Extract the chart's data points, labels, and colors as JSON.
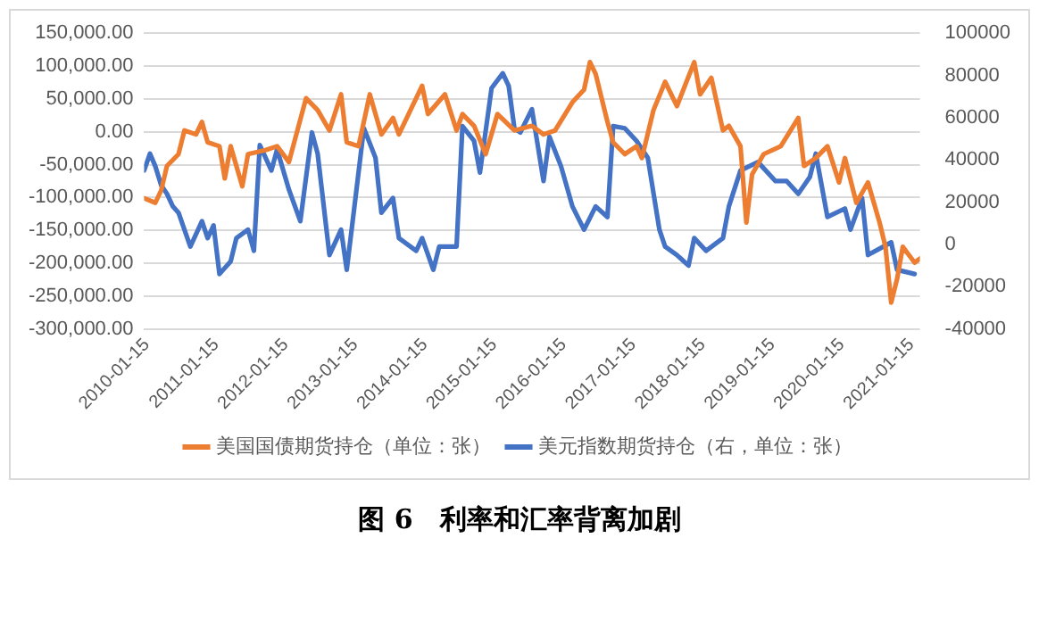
{
  "chart_data": {
    "type": "line",
    "title": "图 6　利率和汇率背离加剧",
    "x": [
      "2010-01",
      "2010-03",
      "2010-04",
      "2010-05",
      "2010-07",
      "2010-08",
      "2010-10",
      "2010-11",
      "2010-12",
      "2011-02",
      "2011-03",
      "2011-04",
      "2011-06",
      "2011-07",
      "2011-10",
      "2011-12",
      "2012-02",
      "2012-05",
      "2012-07",
      "2012-09",
      "2012-11",
      "2012-12",
      "2013-02",
      "2013-04",
      "2013-06",
      "2013-08",
      "2013-09",
      "2014-01",
      "2014-02",
      "2014-05",
      "2014-07",
      "2014-08",
      "2014-10",
      "2014-12",
      "2015-02",
      "2015-05",
      "2015-08",
      "2015-10",
      "2015-12",
      "2016-03",
      "2016-05",
      "2016-06",
      "2016-07",
      "2016-09",
      "2016-10",
      "2016-12",
      "2017-02",
      "2017-03",
      "2017-05",
      "2017-07",
      "2017-09",
      "2017-12",
      "2018-01",
      "2018-03",
      "2018-05",
      "2018-06",
      "2018-08",
      "2018-09",
      "2018-10",
      "2018-12",
      "2019-03",
      "2019-06",
      "2019-07",
      "2019-09",
      "2019-11",
      "2020-01",
      "2020-02",
      "2020-04",
      "2020-06",
      "2020-08",
      "2020-09",
      "2020-10",
      "2020-11",
      "2020-12",
      "2021-02",
      "2021-03"
    ],
    "series": [
      {
        "name": "美国国债期货持仓（单位：张）",
        "color": "#ed7d31",
        "values": [
          -101000,
          -108000,
          -89000,
          -52000,
          -34000,
          2000,
          -4000,
          15000,
          -16000,
          -22000,
          -71000,
          -22000,
          -83000,
          -34000,
          -28000,
          -22000,
          -46000,
          51000,
          33000,
          2000,
          57000,
          -16000,
          -22000,
          57000,
          -4000,
          21000,
          -4000,
          70000,
          27000,
          57000,
          2000,
          27000,
          9000,
          -34000,
          27000,
          2000,
          9000,
          -4000,
          2000,
          45000,
          64000,
          106000,
          88000,
          15000,
          -16000,
          -34000,
          -22000,
          -40000,
          33000,
          76000,
          39000,
          106000,
          57000,
          82000,
          2000,
          9000,
          -22000,
          -138000,
          -65000,
          -34000,
          -22000,
          21000,
          -52000,
          -40000,
          -22000,
          -77000,
          -40000,
          -108000,
          -77000,
          -138000,
          -175000,
          -260000,
          -224000,
          -175000,
          -199000,
          -193000
        ]
      },
      {
        "name": "美元指数期货持仓（右，单位：张）",
        "color": "#4472c4",
        "axis": "y2",
        "x": [
          "2010-01",
          "2010-02",
          "2010-03",
          "2010-04",
          "2010-05",
          "2010-06",
          "2010-07",
          "2010-09",
          "2010-11",
          "2010-12",
          "2011-01",
          "2011-02",
          "2011-04",
          "2011-05",
          "2011-07",
          "2011-08",
          "2011-09",
          "2011-11",
          "2011-12",
          "2012-02",
          "2012-04",
          "2012-06",
          "2012-07",
          "2012-09",
          "2012-11",
          "2012-12",
          "2013-01",
          "2013-03",
          "2013-05",
          "2013-06",
          "2013-08",
          "2013-09",
          "2013-12",
          "2014-01",
          "2014-03",
          "2014-04",
          "2014-07",
          "2014-08",
          "2014-10",
          "2014-11",
          "2015-01",
          "2015-03",
          "2015-04",
          "2015-05",
          "2015-06",
          "2015-08",
          "2015-10",
          "2015-11",
          "2016-01",
          "2016-03",
          "2016-05",
          "2016-07",
          "2016-09",
          "2016-10",
          "2016-12",
          "2017-02",
          "2017-04",
          "2017-06",
          "2017-07",
          "2017-09",
          "2017-11",
          "2017-12",
          "2018-02",
          "2018-05",
          "2018-06",
          "2018-08",
          "2018-11",
          "2019-02",
          "2019-04",
          "2019-06",
          "2019-08",
          "2019-09",
          "2019-11",
          "2020-02",
          "2020-03",
          "2020-05",
          "2020-06",
          "2020-10",
          "2020-11",
          "2021-02"
        ],
        "values": [
          35000,
          43000,
          37000,
          28000,
          24000,
          18000,
          15000,
          -1000,
          11000,
          3000,
          9000,
          -14000,
          -8000,
          3000,
          7000,
          -3000,
          47000,
          35000,
          45000,
          26000,
          11000,
          53000,
          43000,
          -5000,
          7000,
          -12000,
          11000,
          55000,
          41000,
          15000,
          22000,
          3000,
          -3000,
          3000,
          -12000,
          -1000,
          -1000,
          56000,
          49000,
          34000,
          74000,
          81000,
          75000,
          55000,
          53000,
          64000,
          30000,
          51000,
          37000,
          18000,
          7000,
          18000,
          13000,
          56000,
          55000,
          49000,
          41000,
          7000,
          -1000,
          -5000,
          -10000,
          3000,
          -3000,
          3000,
          18000,
          35000,
          39000,
          30000,
          30000,
          24000,
          32000,
          43000,
          13000,
          17000,
          7000,
          22000,
          -5000,
          1000,
          -12000,
          -14000
        ]
      }
    ],
    "xlim": [
      "2010-01",
      "2021-03"
    ],
    "xticks": [
      {
        "value": "2010-01-15",
        "label": "2010-01-15"
      },
      {
        "value": "2011-01-15",
        "label": "2011-01-15"
      },
      {
        "value": "2012-01-15",
        "label": "2012-01-15"
      },
      {
        "value": "2013-01-15",
        "label": "2013-01-15"
      },
      {
        "value": "2014-01-15",
        "label": "2014-01-15"
      },
      {
        "value": "2015-01-15",
        "label": "2015-01-15"
      },
      {
        "value": "2016-01-15",
        "label": "2016-01-15"
      },
      {
        "value": "2017-01-15",
        "label": "2017-01-15"
      },
      {
        "value": "2018-01-15",
        "label": "2018-01-15"
      },
      {
        "value": "2019-01-15",
        "label": "2019-01-15"
      },
      {
        "value": "2020-01-15",
        "label": "2020-01-15"
      },
      {
        "value": "2021-01-15",
        "label": "2021-01-15"
      }
    ],
    "ylim": [
      -300000,
      150000
    ],
    "yticks": [
      {
        "value": -300000,
        "label": "-300,000.00"
      },
      {
        "value": -250000,
        "label": "-250,000.00"
      },
      {
        "value": -200000,
        "label": "-200,000.00"
      },
      {
        "value": -150000,
        "label": "-150,000.00"
      },
      {
        "value": -100000,
        "label": "-100,000.00"
      },
      {
        "value": -50000,
        "label": "-50,000.00"
      },
      {
        "value": 0,
        "label": "0.00"
      },
      {
        "value": 50000,
        "label": "50,000.00"
      },
      {
        "value": 100000,
        "label": "100,000.00"
      },
      {
        "value": 150000,
        "label": "150,000.00"
      }
    ],
    "y2lim": [
      -40000,
      100000
    ],
    "y2ticks": [
      -40000,
      -20000,
      0,
      20000,
      40000,
      60000,
      80000,
      100000
    ],
    "grid": "y",
    "legend": "bottom",
    "marker": "none",
    "line_style": "solid"
  }
}
